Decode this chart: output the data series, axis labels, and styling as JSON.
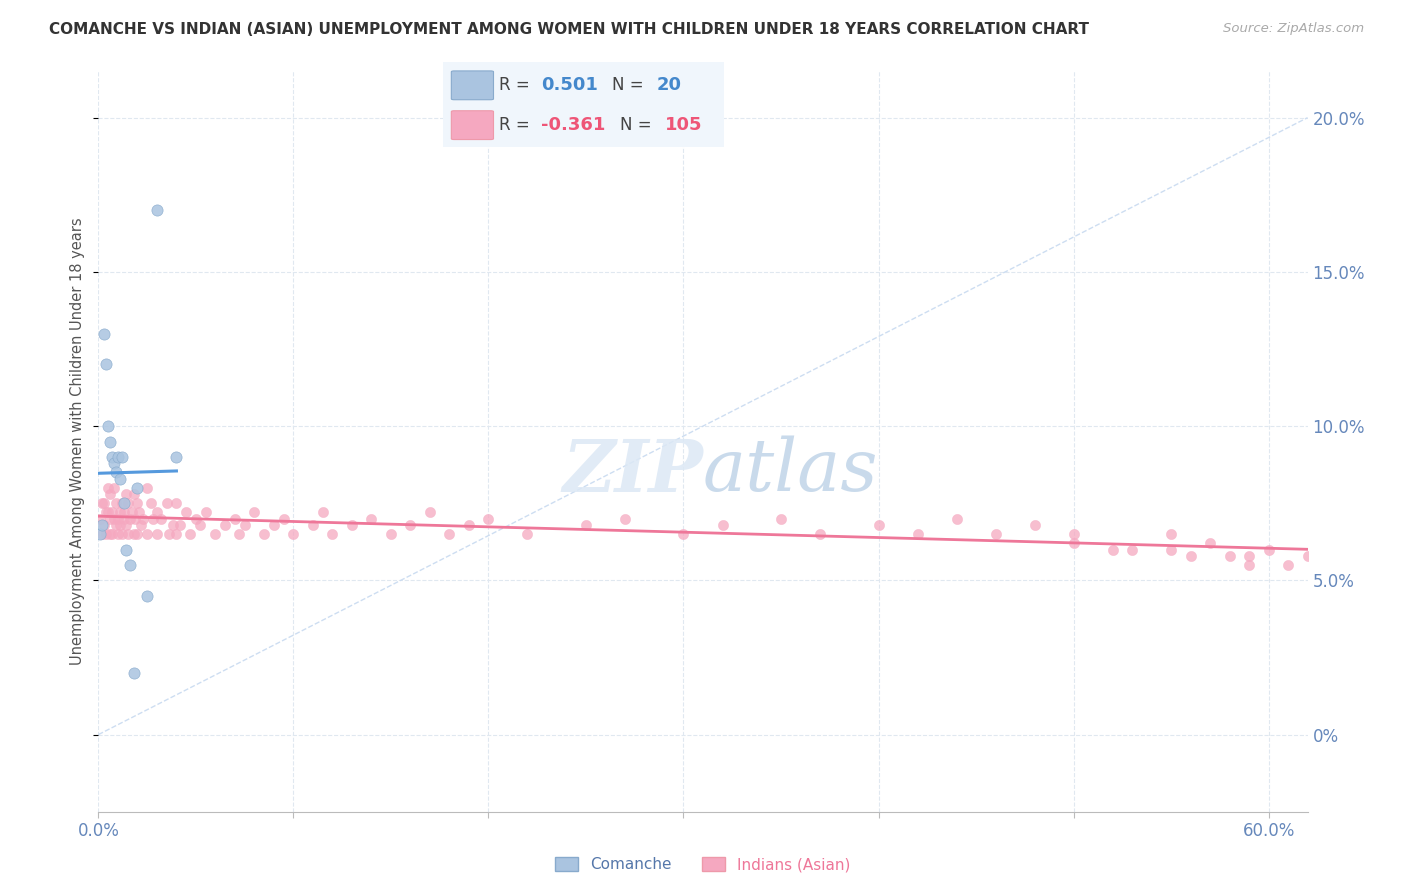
{
  "title": "COMANCHE VS INDIAN (ASIAN) UNEMPLOYMENT AMONG WOMEN WITH CHILDREN UNDER 18 YEARS CORRELATION CHART",
  "source": "Source: ZipAtlas.com",
  "ylabel": "Unemployment Among Women with Children Under 18 years",
  "comanche_R": 0.501,
  "comanche_N": 20,
  "indian_R": -0.361,
  "indian_N": 105,
  "comanche_color": "#aac4e0",
  "comanche_edge": "#88aacc",
  "indian_color": "#f5a8c0",
  "indian_edge": "#f5a8c0",
  "comanche_line_color": "#5599dd",
  "indian_line_color": "#ee7799",
  "ref_line_color": "#c8daf0",
  "right_tick_color": "#6688bb",
  "xlabel_color": "#6688bb",
  "watermark_color": "#dce8f5",
  "background_color": "#ffffff",
  "grid_color": "#e0e8f0",
  "comanche_x": [
    0.001,
    0.002,
    0.003,
    0.004,
    0.005,
    0.006,
    0.007,
    0.008,
    0.009,
    0.01,
    0.011,
    0.012,
    0.013,
    0.014,
    0.016,
    0.018,
    0.02,
    0.025,
    0.03,
    0.04
  ],
  "comanche_y": [
    0.065,
    0.068,
    0.13,
    0.12,
    0.1,
    0.095,
    0.09,
    0.088,
    0.085,
    0.09,
    0.083,
    0.09,
    0.075,
    0.06,
    0.055,
    0.02,
    0.08,
    0.045,
    0.17,
    0.09
  ],
  "indian_x": [
    0.001,
    0.002,
    0.002,
    0.003,
    0.003,
    0.004,
    0.004,
    0.005,
    0.005,
    0.006,
    0.006,
    0.006,
    0.007,
    0.007,
    0.008,
    0.008,
    0.009,
    0.009,
    0.01,
    0.01,
    0.011,
    0.011,
    0.012,
    0.012,
    0.013,
    0.013,
    0.014,
    0.014,
    0.015,
    0.015,
    0.016,
    0.017,
    0.018,
    0.018,
    0.019,
    0.02,
    0.02,
    0.021,
    0.022,
    0.023,
    0.025,
    0.025,
    0.027,
    0.028,
    0.03,
    0.03,
    0.032,
    0.035,
    0.036,
    0.038,
    0.04,
    0.04,
    0.042,
    0.045,
    0.047,
    0.05,
    0.052,
    0.055,
    0.06,
    0.065,
    0.07,
    0.072,
    0.075,
    0.08,
    0.085,
    0.09,
    0.095,
    0.1,
    0.11,
    0.115,
    0.12,
    0.13,
    0.14,
    0.15,
    0.16,
    0.17,
    0.18,
    0.19,
    0.2,
    0.22,
    0.25,
    0.27,
    0.3,
    0.32,
    0.35,
    0.37,
    0.4,
    0.42,
    0.44,
    0.46,
    0.48,
    0.5,
    0.52,
    0.55,
    0.57,
    0.59,
    0.61,
    0.55,
    0.58,
    0.6,
    0.62,
    0.5,
    0.53,
    0.56,
    0.59
  ],
  "indian_y": [
    0.07,
    0.065,
    0.075,
    0.068,
    0.075,
    0.072,
    0.065,
    0.08,
    0.072,
    0.07,
    0.065,
    0.078,
    0.072,
    0.065,
    0.08,
    0.07,
    0.068,
    0.075,
    0.07,
    0.065,
    0.072,
    0.068,
    0.075,
    0.065,
    0.07,
    0.072,
    0.068,
    0.078,
    0.065,
    0.075,
    0.07,
    0.072,
    0.065,
    0.078,
    0.07,
    0.075,
    0.065,
    0.072,
    0.068,
    0.07,
    0.08,
    0.065,
    0.075,
    0.07,
    0.072,
    0.065,
    0.07,
    0.075,
    0.065,
    0.068,
    0.075,
    0.065,
    0.068,
    0.072,
    0.065,
    0.07,
    0.068,
    0.072,
    0.065,
    0.068,
    0.07,
    0.065,
    0.068,
    0.072,
    0.065,
    0.068,
    0.07,
    0.065,
    0.068,
    0.072,
    0.065,
    0.068,
    0.07,
    0.065,
    0.068,
    0.072,
    0.065,
    0.068,
    0.07,
    0.065,
    0.068,
    0.07,
    0.065,
    0.068,
    0.07,
    0.065,
    0.068,
    0.065,
    0.07,
    0.065,
    0.068,
    0.062,
    0.06,
    0.065,
    0.062,
    0.058,
    0.055,
    0.06,
    0.058,
    0.06,
    0.058,
    0.065,
    0.06,
    0.058,
    0.055
  ],
  "xlim": [
    0.0,
    0.62
  ],
  "ylim": [
    -0.025,
    0.215
  ],
  "xtick_positions": [
    0.0,
    0.1,
    0.2,
    0.3,
    0.4,
    0.5,
    0.6
  ],
  "ytick_positions": [
    0.0,
    0.05,
    0.1,
    0.15,
    0.2
  ],
  "ytick_labels": [
    "0%",
    "5.0%",
    "10.0%",
    "15.0%",
    "20.0%"
  ]
}
